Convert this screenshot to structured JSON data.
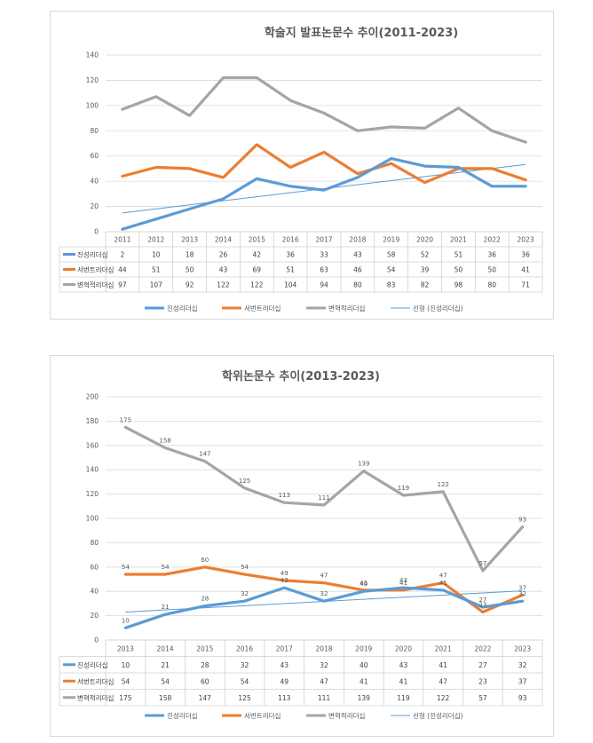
{
  "chart_data": [
    {
      "type": "line",
      "title": "학술지 발표논문수 추이(2011-2023)",
      "x": [
        "2011",
        "2012",
        "2013",
        "2014",
        "2015",
        "2016",
        "2017",
        "2018",
        "2019",
        "2020",
        "2021",
        "2022",
        "2023"
      ],
      "ylim": [
        0,
        140
      ],
      "yticks": [
        0,
        20,
        40,
        60,
        80,
        100,
        120,
        140
      ],
      "grid": true,
      "data_labels": false,
      "legend_position": "bottom",
      "series": [
        {
          "name": "진성리더십",
          "color": "#5b9bd5",
          "values": [
            2,
            10,
            18,
            26,
            42,
            36,
            33,
            43,
            58,
            52,
            51,
            36,
            36
          ]
        },
        {
          "name": "서번트리더십",
          "color": "#ed7d31",
          "values": [
            44,
            51,
            50,
            43,
            69,
            51,
            63,
            46,
            54,
            39,
            50,
            50,
            41
          ]
        },
        {
          "name": "변혁적리더십",
          "color": "#a5a5a5",
          "values": [
            97,
            107,
            92,
            122,
            122,
            104,
            94,
            80,
            83,
            82,
            98,
            80,
            71
          ]
        }
      ],
      "trendline": {
        "name": "선형 (진성리더십)",
        "color": "#5b9bd5",
        "of": "진성리더십"
      }
    },
    {
      "type": "line",
      "title": "학위논문수 추이(2013-2023)",
      "x": [
        "2013",
        "2014",
        "2015",
        "2016",
        "2017",
        "2018",
        "2019",
        "2020",
        "2021",
        "2022",
        "2023"
      ],
      "ylim": [
        0,
        200
      ],
      "yticks": [
        0,
        20,
        40,
        60,
        80,
        100,
        120,
        140,
        160,
        180,
        200
      ],
      "grid": true,
      "data_labels": true,
      "legend_position": "bottom",
      "series": [
        {
          "name": "진성리더십",
          "color": "#5b9bd5",
          "values": [
            10,
            21,
            28,
            32,
            43,
            32,
            40,
            43,
            41,
            27,
            32
          ]
        },
        {
          "name": "서번트리더십",
          "color": "#ed7d31",
          "values": [
            54,
            54,
            60,
            54,
            49,
            47,
            41,
            41,
            47,
            23,
            37
          ]
        },
        {
          "name": "변혁적리더십",
          "color": "#a5a5a5",
          "values": [
            175,
            158,
            147,
            125,
            113,
            111,
            139,
            119,
            122,
            57,
            93
          ]
        }
      ],
      "trendline": {
        "name": "선형 (진성리더십)",
        "color": "#5b9bd5",
        "of": "진성리더십"
      }
    }
  ]
}
